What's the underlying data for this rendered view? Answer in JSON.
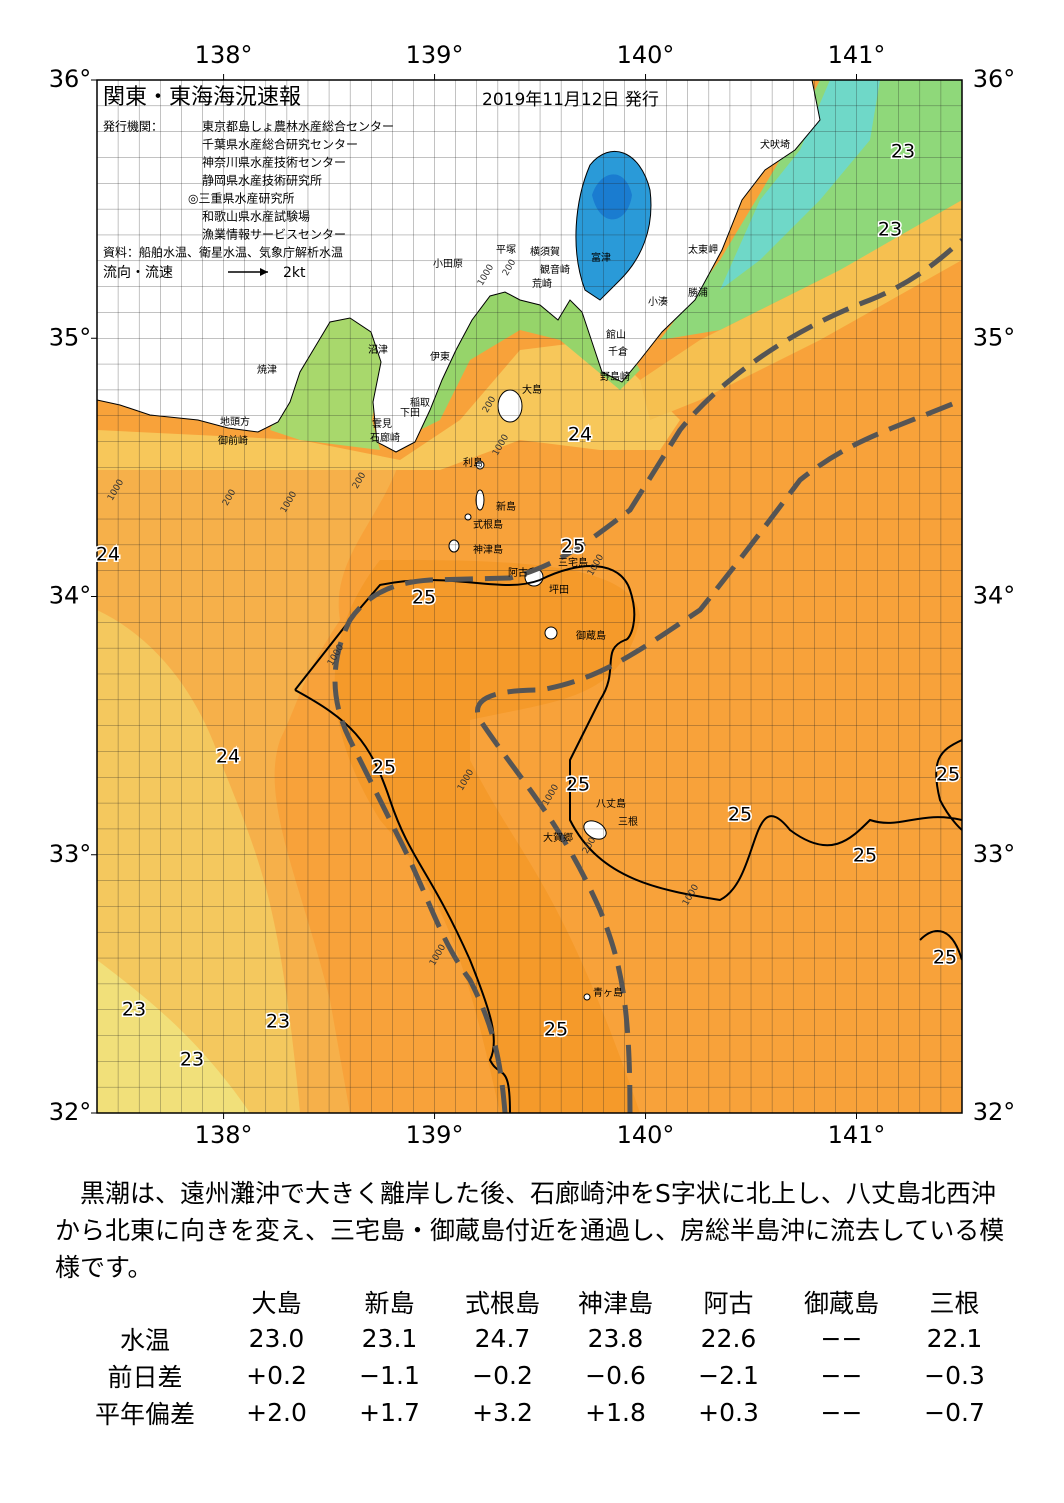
{
  "map": {
    "title": "関東・東海海況速報",
    "date": "2019年11月12日 発行",
    "issuers_label": "発行機関：",
    "issuers": [
      "東京都島しょ農林水産総合センター",
      "千葉県水産総合研究センター",
      "神奈川県水産技術センター",
      "静岡県水産技術研究所",
      "◎三重県水産研究所",
      "和歌山県水産試験場",
      "漁業情報サービスセンター"
    ],
    "source": "資料：船舶水温、衛星水温、気象庁解析水温",
    "current_legend": "流向・流速",
    "current_scale": "2kt",
    "lonlim": [
      137.4,
      141.5
    ],
    "latlim": [
      32,
      36
    ],
    "lon_ticks": [
      {
        "value": 138,
        "label": "138°"
      },
      {
        "value": 139,
        "label": "139°"
      },
      {
        "value": 140,
        "label": "140°"
      },
      {
        "value": 141,
        "label": "141°"
      }
    ],
    "lat_ticks": [
      {
        "value": 32,
        "label": "32°"
      },
      {
        "value": 33,
        "label": "33°"
      },
      {
        "value": 34,
        "label": "34°"
      },
      {
        "value": 35,
        "label": "35°"
      },
      {
        "value": 36,
        "label": "36°"
      }
    ],
    "temperature_labels": [
      23,
      23,
      24,
      24,
      25,
      25,
      24,
      25,
      25,
      25,
      25,
      25,
      25,
      23,
      23,
      23,
      25
    ],
    "place_names": [
      "犬吠埼",
      "太東岬",
      "勝浦",
      "小湊",
      "富津",
      "横須賀",
      "平塚",
      "小田原",
      "観音崎",
      "荒崎",
      "館山",
      "千倉",
      "野島崎",
      "沼津",
      "伊東",
      "焼津",
      "稲取",
      "下田",
      "雲見",
      "石廊崎",
      "地頭方",
      "御前崎",
      "大島",
      "利島",
      "新島",
      "式根島",
      "神津島",
      "三宅島",
      "阿古",
      "坪田",
      "御蔵島",
      "八丈島",
      "三根",
      "大賀郷",
      "青ヶ島"
    ],
    "depth_labels": [
      "1000",
      "200",
      "1000",
      "200",
      "1000",
      "200",
      "1000",
      "200",
      "1000",
      "1000",
      "1000",
      "1000",
      "200",
      "1000",
      "1000"
    ]
  },
  "summary": "　黒潮は、遠州灘沖で大きく離岸した後、石廊崎沖をS字状に北上し、八丈島北西沖から北東に向きを変え、三宅島・御蔵島付近を通過し、房総半島沖に流去している模様です。",
  "table": {
    "columns": [
      "大島",
      "新島",
      "式根島",
      "神津島",
      "阿古",
      "御蔵島",
      "三根"
    ],
    "rows": [
      {
        "label": "水温",
        "values": [
          "23.0",
          "23.1",
          "24.7",
          "23.8",
          "22.6",
          "−−",
          "22.1"
        ]
      },
      {
        "label": "前日差",
        "values": [
          "+0.2",
          "−1.1",
          "−0.2",
          "−0.6",
          "−2.1",
          "−−",
          "−0.3"
        ]
      },
      {
        "label": "平年偏差",
        "values": [
          "+2.0",
          "+1.7",
          "+3.2",
          "+1.8",
          "+0.3",
          "−−",
          "−0.7"
        ]
      }
    ]
  }
}
